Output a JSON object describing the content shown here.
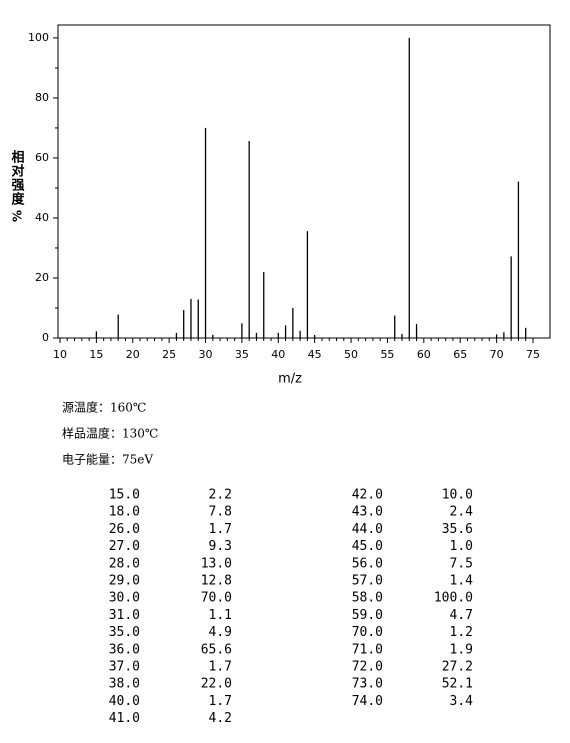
{
  "chart_data": {
    "type": "bar",
    "x_label": "m/z",
    "y_label_chars": [
      "相",
      "对",
      "强",
      "度"
    ],
    "y_label_unit": "%",
    "x": [
      15,
      18,
      26,
      27,
      28,
      29,
      30,
      31,
      35,
      36,
      37,
      38,
      40,
      41,
      42,
      43,
      44,
      45,
      56,
      57,
      58,
      59,
      70,
      71,
      72,
      73,
      74
    ],
    "values": [
      2.2,
      7.8,
      1.7,
      9.3,
      13.0,
      12.8,
      70.0,
      1.1,
      4.9,
      65.6,
      1.7,
      22.0,
      1.7,
      4.2,
      10.0,
      2.4,
      35.6,
      1.0,
      7.5,
      1.4,
      100.0,
      4.7,
      1.2,
      1.9,
      27.2,
      52.1,
      3.4
    ],
    "color": "#000000",
    "xlim": [
      9.725,
      77.34
    ],
    "xticks": [
      10,
      15,
      20,
      25,
      30,
      35,
      40,
      45,
      50,
      55,
      60,
      65,
      70,
      75
    ],
    "ylim": [
      0,
      104.3
    ],
    "yticks": [
      0,
      20,
      40,
      60,
      80,
      100
    ]
  },
  "info": [
    "源温度：160℃",
    "样品温度：130℃",
    "电子能量：75eV"
  ],
  "table": {
    "rows": [
      [
        "15.0",
        "2.2"
      ],
      [
        "18.0",
        "7.8"
      ],
      [
        "26.0",
        "1.7"
      ],
      [
        "27.0",
        "9.3"
      ],
      [
        "28.0",
        "13.0"
      ],
      [
        "29.0",
        "12.8"
      ],
      [
        "30.0",
        "70.0"
      ],
      [
        "31.0",
        "1.1"
      ],
      [
        "35.0",
        "4.9"
      ],
      [
        "36.0",
        "65.6"
      ],
      [
        "37.0",
        "1.7"
      ],
      [
        "38.0",
        "22.0"
      ],
      [
        "40.0",
        "1.7"
      ],
      [
        "41.0",
        "4.2"
      ],
      [
        "42.0",
        "10.0"
      ],
      [
        "43.0",
        "2.4"
      ],
      [
        "44.0",
        "35.6"
      ],
      [
        "45.0",
        "1.0"
      ],
      [
        "56.0",
        "7.5"
      ],
      [
        "57.0",
        "1.4"
      ],
      [
        "58.0",
        "100.0"
      ],
      [
        "59.0",
        "4.7"
      ],
      [
        "70.0",
        "1.2"
      ],
      [
        "71.0",
        "1.9"
      ],
      [
        "72.0",
        "27.2"
      ],
      [
        "73.0",
        "52.1"
      ],
      [
        "74.0",
        "3.4"
      ]
    ]
  }
}
